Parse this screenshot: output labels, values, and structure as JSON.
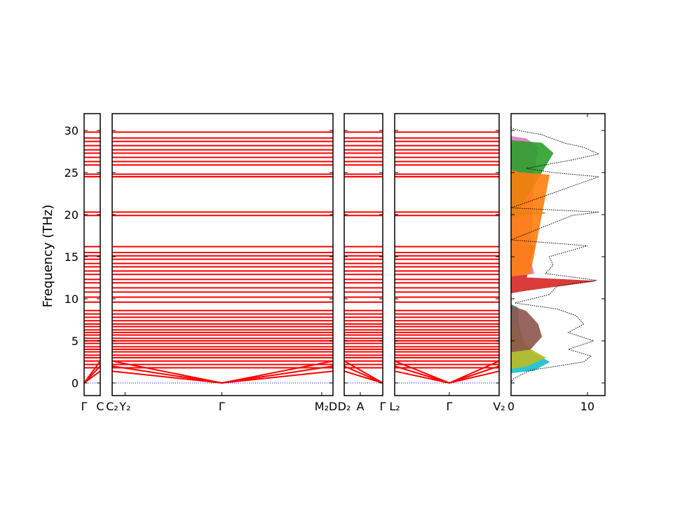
{
  "chart_data": {
    "type": "line",
    "ylabel": "Frequency (THz)",
    "ylim": [
      -1.5,
      32
    ],
    "yticks": [
      0,
      5,
      10,
      15,
      20,
      25,
      30
    ],
    "band_color": "#ff0000",
    "zero_line_color": "#0000ff",
    "panels": [
      {
        "krange": [
          0,
          1.0
        ],
        "labels": [
          {
            "k": 0,
            "text": "Γ"
          },
          {
            "k": 1.0,
            "text": "C"
          }
        ],
        "gamma_k": [
          0
        ]
      },
      {
        "krange": [
          0,
          13.7
        ],
        "labels": [
          {
            "k": 0,
            "text": "C₂"
          },
          {
            "k": 0.8,
            "text": "Y₂"
          },
          {
            "k": 6.8,
            "text": "Γ"
          },
          {
            "k": 13.0,
            "text": "M₂"
          },
          {
            "k": 13.7,
            "text": "D"
          }
        ],
        "gamma_k": [
          6.8
        ]
      },
      {
        "krange": [
          0,
          2.4
        ],
        "labels": [
          {
            "k": 0,
            "text": "D₂"
          },
          {
            "k": 1.0,
            "text": "A"
          },
          {
            "k": 2.4,
            "text": "Γ"
          }
        ],
        "gamma_k": [
          2.4
        ]
      },
      {
        "krange": [
          0,
          6.5
        ],
        "labels": [
          {
            "k": 0,
            "text": "L₂"
          },
          {
            "k": 3.4,
            "text": "Γ"
          },
          {
            "k": 6.5,
            "text": "V₂"
          }
        ],
        "gamma_k": [
          3.4
        ]
      }
    ],
    "optical_band_levels": [
      1.8,
      2.2,
      2.6,
      3.0,
      3.3,
      3.7,
      4.0,
      4.3,
      4.7,
      5.0,
      5.3,
      5.7,
      6.0,
      6.3,
      6.7,
      7.0,
      7.4,
      7.8,
      8.2,
      8.6,
      9.6,
      10.2,
      10.8,
      11.3,
      11.9,
      12.3,
      12.9,
      13.3,
      13.8,
      14.2,
      14.7,
      15.1,
      15.5,
      16.2,
      19.9,
      20.3,
      24.5,
      24.8,
      25.9,
      26.3,
      26.8,
      27.3,
      27.7,
      28.2,
      28.7,
      29.1,
      29.8
    ],
    "acoustic_band_edges": [
      1.4,
      2.0,
      2.6
    ],
    "dos": {
      "xlim": [
        0,
        12.3
      ],
      "xticks": [
        0,
        10
      ],
      "total_style": "black dotted",
      "total": [
        [
          0.5,
          0.3
        ],
        [
          1.5,
          2.5
        ],
        [
          2.5,
          9.5
        ],
        [
          3.2,
          10.5
        ],
        [
          4,
          7.5
        ],
        [
          5,
          10.8
        ],
        [
          6,
          7.5
        ],
        [
          7,
          9.5
        ],
        [
          8,
          8.5
        ],
        [
          8.8,
          6
        ],
        [
          9.5,
          0.5
        ],
        [
          10.5,
          5
        ],
        [
          11.5,
          6
        ],
        [
          12.2,
          11.2
        ],
        [
          13,
          4.5
        ],
        [
          14,
          5.5
        ],
        [
          15,
          5
        ],
        [
          16.3,
          10
        ],
        [
          17,
          0
        ],
        [
          19.9,
          8
        ],
        [
          20.3,
          11.5
        ],
        [
          20.8,
          0
        ],
        [
          24.5,
          11.5
        ],
        [
          25,
          5.5
        ],
        [
          25.5,
          2
        ],
        [
          26.5,
          8
        ],
        [
          27.2,
          11.5
        ],
        [
          28,
          9.5
        ],
        [
          28.5,
          7
        ],
        [
          29.5,
          4
        ],
        [
          30,
          1
        ],
        [
          30.3,
          0
        ]
      ],
      "partials": [
        {
          "color": "#17becf",
          "points": [
            [
              1.5,
              3
            ],
            [
              2.5,
              5
            ],
            [
              3.5,
              3
            ],
            [
              5,
              1.5
            ],
            [
              7,
              1
            ],
            [
              9,
              0.8
            ]
          ]
        },
        {
          "color": "#bcbd22",
          "points": [
            [
              2,
              2
            ],
            [
              3,
              4.5
            ],
            [
              4,
              2.5
            ],
            [
              5.5,
              1.2
            ],
            [
              7,
              0.5
            ]
          ]
        },
        {
          "color": "#8c564b",
          "points": [
            [
              4,
              2.5
            ],
            [
              5.5,
              4
            ],
            [
              7,
              3.5
            ],
            [
              8.5,
              2
            ],
            [
              9,
              0.5
            ]
          ]
        },
        {
          "color": "#d62728",
          "points": [
            [
              11,
              2
            ],
            [
              12.1,
              11
            ],
            [
              12.5,
              2
            ],
            [
              16.3,
              3
            ]
          ]
        },
        {
          "color": "#e377c2",
          "points": [
            [
              13,
              3
            ],
            [
              14.5,
              2.5
            ],
            [
              25,
              3
            ],
            [
              28,
              3.5
            ],
            [
              29,
              2
            ]
          ]
        },
        {
          "color": "#2ca02c",
          "points": [
            [
              20,
              2
            ],
            [
              20.2,
              4.5
            ],
            [
              20.5,
              1
            ],
            [
              27.3,
              5.5
            ],
            [
              28.5,
              4
            ]
          ]
        },
        {
          "color": "#ff7f0e",
          "points": [
            [
              13,
              2.5
            ],
            [
              24.7,
              5
            ],
            [
              25,
              1
            ]
          ]
        }
      ]
    }
  }
}
